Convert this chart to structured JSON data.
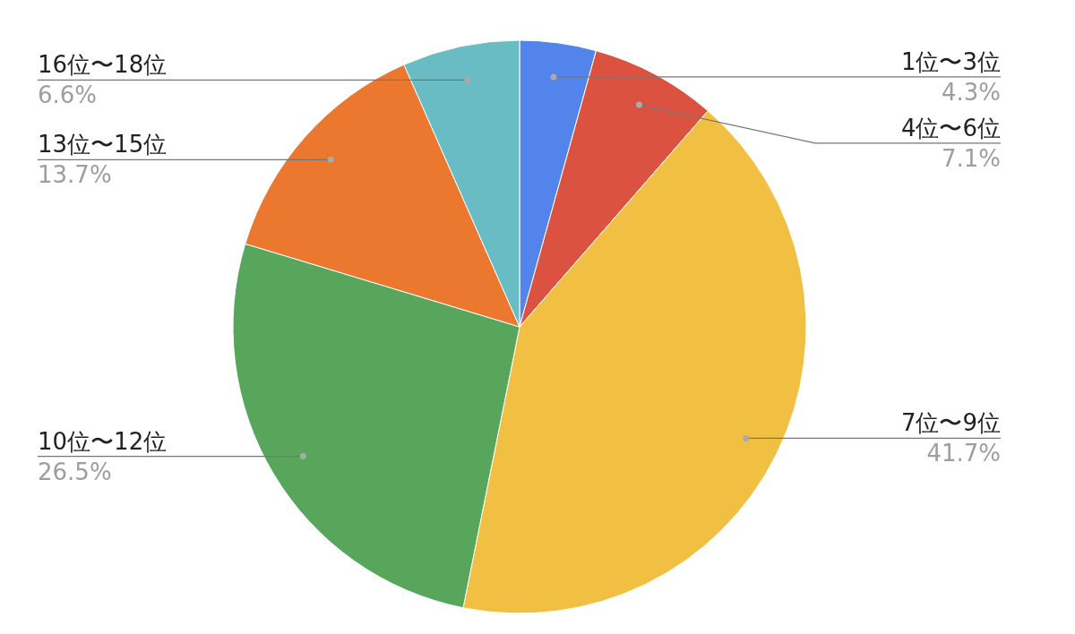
{
  "chart_data": {
    "type": "pie",
    "categories": [
      "1位〜3位",
      "4位〜6位",
      "7位〜9位",
      "10位〜12位",
      "13位〜15位",
      "16位〜18位"
    ],
    "values": [
      4.3,
      7.1,
      41.7,
      26.5,
      13.7,
      6.6
    ],
    "value_labels": [
      "4.3%",
      "7.1%",
      "41.7%",
      "26.5%",
      "13.7%",
      "6.6%"
    ],
    "colors": [
      "#5384ec",
      "#db5240",
      "#f1bf42",
      "#58a65c",
      "#ec772f",
      "#69bcc4"
    ]
  }
}
